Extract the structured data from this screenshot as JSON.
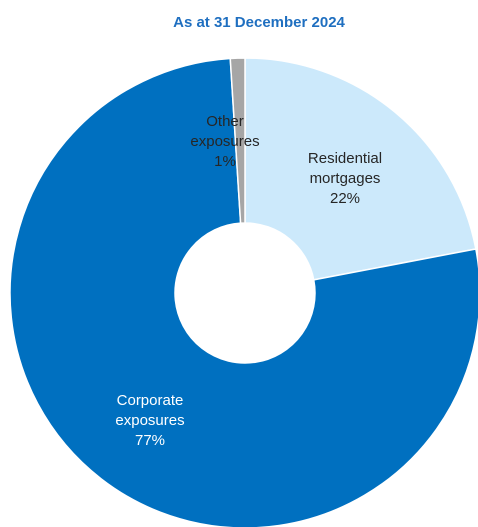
{
  "colors": {
    "title": "#1f6fc0",
    "residential": "#cce9fb",
    "corporate": "#0070c0",
    "other": "#a6a6a6",
    "dark_text": "#262626",
    "light_text": "#ffffff"
  },
  "chart_data": {
    "type": "pie",
    "title": "As at 31 December 2024",
    "hole": true,
    "slices": [
      {
        "name": "Residential mortgages",
        "label_lines": [
          "Residential",
          "mortgages"
        ],
        "value": 22,
        "value_label": "22%",
        "color_key": "residential",
        "text_color_key": "dark_text"
      },
      {
        "name": "Corporate exposures",
        "label_lines": [
          "Corporate",
          "exposures"
        ],
        "value": 77,
        "value_label": "77%",
        "color_key": "corporate",
        "text_color_key": "light_text"
      },
      {
        "name": "Other exposures",
        "label_lines": [
          "Other",
          "exposures"
        ],
        "value": 1,
        "value_label": "1%",
        "color_key": "other",
        "text_color_key": "dark_text"
      }
    ]
  }
}
